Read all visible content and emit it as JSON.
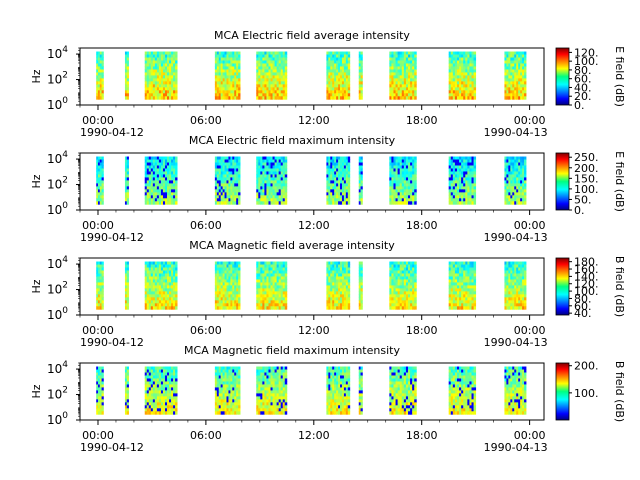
{
  "chart_data": [
    {
      "type": "heatmap",
      "title": "MCA  Electric field average intensity",
      "ylabel": "Hz",
      "y_scale": "log",
      "ylim": [
        1,
        30000
      ],
      "y_ticks": [
        {
          "base": "10",
          "exp": "0"
        },
        {
          "base": "10",
          "exp": "2"
        },
        {
          "base": "10",
          "exp": "4"
        }
      ],
      "x_ticks": [
        "00:00",
        "06:00",
        "12:00",
        "18:00",
        "00:00"
      ],
      "x_date_start": "1990-04-12",
      "x_date_end": "1990-04-13",
      "colorbar": {
        "label": "E field (dB)",
        "min": 0,
        "max": 130,
        "ticks": [
          "0.",
          "20.",
          "40.",
          "60.",
          "80.",
          "100.",
          "120."
        ],
        "tick_values": [
          0,
          20,
          40,
          60,
          80,
          100,
          120
        ]
      },
      "data_segments_hours": [
        [
          -0.1,
          0.3
        ],
        [
          1.5,
          1.7
        ],
        [
          2.6,
          4.4
        ],
        [
          6.5,
          7.9
        ],
        [
          8.8,
          10.5
        ],
        [
          12.7,
          14.0
        ],
        [
          14.5,
          14.7
        ],
        [
          16.2,
          17.7
        ],
        [
          19.5,
          21.0
        ],
        [
          22.6,
          23.8
        ]
      ],
      "mean_level": 70,
      "spread": 35,
      "seed": 11
    },
    {
      "type": "heatmap",
      "title": "MCA  Electric field maximum intensity",
      "ylabel": "Hz",
      "y_scale": "log",
      "ylim": [
        1,
        30000
      ],
      "y_ticks": [
        {
          "base": "10",
          "exp": "0"
        },
        {
          "base": "10",
          "exp": "2"
        },
        {
          "base": "10",
          "exp": "4"
        }
      ],
      "x_ticks": [
        "00:00",
        "06:00",
        "12:00",
        "18:00",
        "00:00"
      ],
      "x_date_start": "1990-04-12",
      "x_date_end": "1990-04-13",
      "colorbar": {
        "label": "E field (dB)",
        "min": 0,
        "max": 270,
        "ticks": [
          "0.",
          "50.",
          "100.",
          "150.",
          "200.",
          "250."
        ],
        "tick_values": [
          0,
          50,
          100,
          150,
          200,
          250
        ]
      },
      "data_segments_hours": [
        [
          -0.1,
          0.3
        ],
        [
          1.5,
          1.7
        ],
        [
          2.6,
          4.4
        ],
        [
          6.5,
          7.9
        ],
        [
          8.8,
          10.5
        ],
        [
          12.7,
          14.0
        ],
        [
          14.5,
          14.7
        ],
        [
          16.2,
          17.7
        ],
        [
          19.5,
          21.0
        ],
        [
          22.6,
          23.8
        ]
      ],
      "mean_level": 120,
      "spread": 55,
      "seed": 23
    },
    {
      "type": "heatmap",
      "title": "MCA  Magnetic field average intensity",
      "ylabel": "Hz",
      "y_scale": "log",
      "ylim": [
        1,
        30000
      ],
      "y_ticks": [
        {
          "base": "10",
          "exp": "0"
        },
        {
          "base": "10",
          "exp": "2"
        },
        {
          "base": "10",
          "exp": "4"
        }
      ],
      "x_ticks": [
        "00:00",
        "06:00",
        "12:00",
        "18:00",
        "00:00"
      ],
      "x_date_start": "1990-04-12",
      "x_date_end": "1990-04-13",
      "colorbar": {
        "label": "B field (dB)",
        "min": 35,
        "max": 190,
        "ticks": [
          "40.",
          "60.",
          "80.",
          "100.",
          "120.",
          "140.",
          "160.",
          "180."
        ],
        "tick_values": [
          40,
          60,
          80,
          100,
          120,
          140,
          160,
          180
        ]
      },
      "data_segments_hours": [
        [
          -0.1,
          0.3
        ],
        [
          1.5,
          1.7
        ],
        [
          2.6,
          4.4
        ],
        [
          6.5,
          7.9
        ],
        [
          8.8,
          10.5
        ],
        [
          12.7,
          14.0
        ],
        [
          14.5,
          14.7
        ],
        [
          16.2,
          17.7
        ],
        [
          19.5,
          21.0
        ],
        [
          22.6,
          23.8
        ]
      ],
      "mean_level": 115,
      "spread": 40,
      "seed": 37
    },
    {
      "type": "heatmap",
      "title": "MCA  Magnetic field maximum intensity",
      "ylabel": "Hz",
      "y_scale": "log",
      "ylim": [
        1,
        30000
      ],
      "y_ticks": [
        {
          "base": "10",
          "exp": "0"
        },
        {
          "base": "10",
          "exp": "2"
        },
        {
          "base": "10",
          "exp": "4"
        }
      ],
      "x_ticks": [
        "00:00",
        "06:00",
        "12:00",
        "18:00",
        "00:00"
      ],
      "x_date_start": "1990-04-12",
      "x_date_end": "1990-04-13",
      "colorbar": {
        "label": "B field (dB)",
        "min": 0,
        "max": 210,
        "ticks": [
          "100.",
          "200."
        ],
        "tick_values": [
          100,
          200
        ]
      },
      "data_segments_hours": [
        [
          -0.1,
          0.3
        ],
        [
          1.5,
          1.7
        ],
        [
          2.6,
          4.4
        ],
        [
          6.5,
          7.9
        ],
        [
          8.8,
          10.5
        ],
        [
          12.7,
          14.0
        ],
        [
          14.5,
          14.7
        ],
        [
          16.2,
          17.7
        ],
        [
          19.5,
          21.0
        ],
        [
          22.6,
          23.8
        ]
      ],
      "mean_level": 110,
      "spread": 45,
      "seed": 53
    }
  ]
}
